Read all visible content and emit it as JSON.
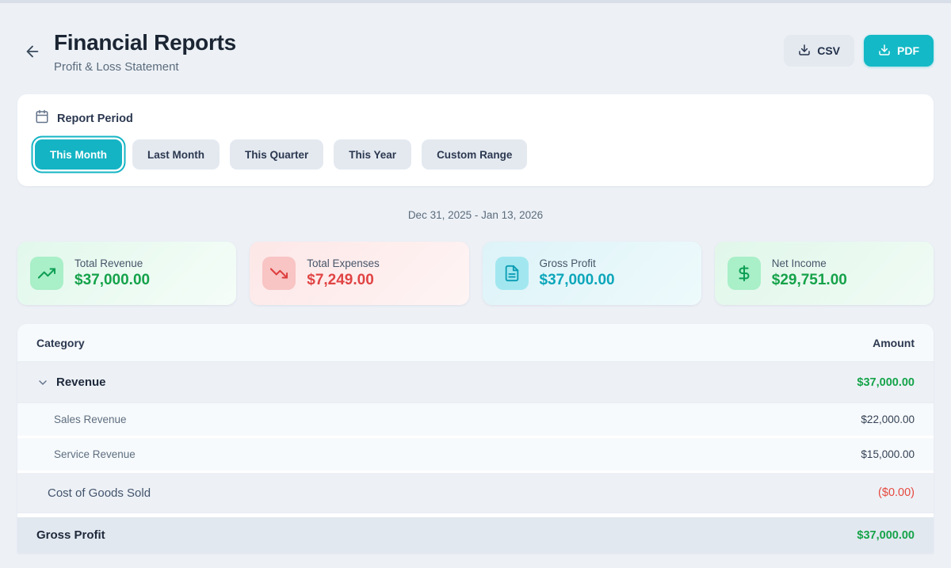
{
  "header": {
    "title": "Financial Reports",
    "subtitle": "Profit & Loss Statement",
    "csv_label": "CSV",
    "pdf_label": "PDF"
  },
  "report_period": {
    "label": "Report Period",
    "options": [
      {
        "slug": "this-month",
        "label": "This Month",
        "active": true
      },
      {
        "slug": "last-month",
        "label": "Last Month",
        "active": false
      },
      {
        "slug": "this-quarter",
        "label": "This Quarter",
        "active": false
      },
      {
        "slug": "this-year",
        "label": "This Year",
        "active": false
      },
      {
        "slug": "custom-range",
        "label": "Custom Range",
        "active": false
      }
    ]
  },
  "date_range": "Dec 31, 2025 - Jan 13, 2026",
  "summary_cards": [
    {
      "label": "Total Revenue",
      "value": "$37,000.00",
      "icon": "trending-up-icon",
      "accent": "#15a24a"
    },
    {
      "label": "Total Expenses",
      "value": "$7,249.00",
      "icon": "trending-down-icon",
      "accent": "#e14444"
    },
    {
      "label": "Gross Profit",
      "value": "$37,000.00",
      "icon": "file-text-icon",
      "accent": "#0ca6ba"
    },
    {
      "label": "Net Income",
      "value": "$29,751.00",
      "icon": "dollar-icon",
      "accent": "#15a24a"
    }
  ],
  "table": {
    "columns": {
      "category": "Category",
      "amount": "Amount"
    },
    "rows": [
      {
        "label": "Revenue",
        "amount": "$37,000.00",
        "type": "category",
        "expandable": true,
        "amount_color": "green"
      },
      {
        "label": "Sales Revenue",
        "amount": "$22,000.00",
        "type": "sub",
        "expandable": false,
        "amount_color": "dark"
      },
      {
        "label": "Service Revenue",
        "amount": "$15,000.00",
        "type": "sub",
        "expandable": false,
        "amount_color": "dark"
      },
      {
        "label": "Cost of Goods Sold",
        "amount": "($0.00)",
        "type": "plain",
        "expandable": false,
        "amount_color": "red"
      },
      {
        "label": "Gross Profit",
        "amount": "$37,000.00",
        "type": "total",
        "expandable": false,
        "amount_color": "green"
      }
    ]
  }
}
